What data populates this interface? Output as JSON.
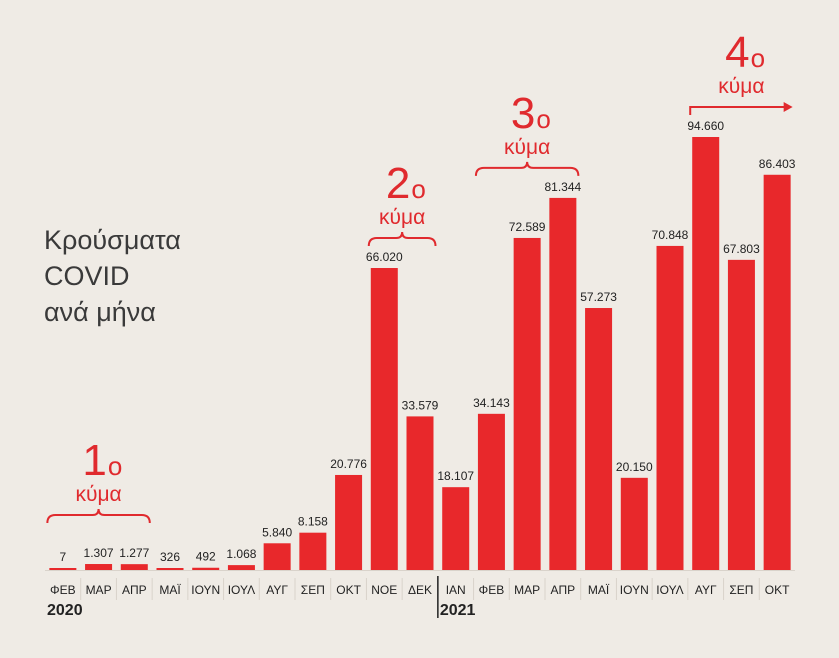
{
  "chart_data": {
    "type": "bar",
    "title_lines": [
      "Κρούσματα",
      "COVID",
      "ανά μήνα"
    ],
    "categories": [
      "ΦΕΒ",
      "ΜΑΡ",
      "ΑΠΡ",
      "ΜΑΪ",
      "ΙΟΥΝ",
      "ΙΟΥΛ",
      "ΑΥΓ",
      "ΣΕΠ",
      "ΟΚΤ",
      "ΝΟΕ",
      "ΔΕΚ",
      "ΙΑΝ",
      "ΦΕΒ",
      "ΜΑΡ",
      "ΑΠΡ",
      "ΜΑΪ",
      "ΙΟΥΝ",
      "ΙΟΥΛ",
      "ΑΥΓ",
      "ΣΕΠ",
      "ΟΚΤ"
    ],
    "values": [
      7,
      1307,
      1277,
      326,
      492,
      1068,
      5840,
      8158,
      20776,
      66020,
      33579,
      18107,
      34143,
      72589,
      81344,
      57273,
      20150,
      70848,
      94660,
      67803,
      86403
    ],
    "value_labels": [
      "7",
      "1.307",
      "1.277",
      "326",
      "492",
      "1.068",
      "5.840",
      "8.158",
      "20.776",
      "66.020",
      "33.579",
      "18.107",
      "34.143",
      "72.589",
      "81.344",
      "57.273",
      "20.150",
      "70.848",
      "94.660",
      "67.803",
      "86.403"
    ],
    "years": [
      {
        "label": "2020",
        "start_index": 0
      },
      {
        "label": "2021",
        "start_index": 11
      }
    ],
    "waves": [
      {
        "number": "1",
        "suffix": "ο",
        "word": "κύμα",
        "from_index": 0,
        "to_index": 2,
        "arrow": false
      },
      {
        "number": "2",
        "suffix": "ο",
        "word": "κύμα",
        "from_index": 9,
        "to_index": 10,
        "arrow": false
      },
      {
        "number": "3",
        "suffix": "ο",
        "word": "κύμα",
        "from_index": 12,
        "to_index": 14,
        "arrow": false
      },
      {
        "number": "4",
        "suffix": "ο",
        "word": "κύμα",
        "from_index": 18,
        "to_index": 20,
        "arrow": true
      }
    ],
    "ylim": [
      0,
      94660
    ],
    "grid": false,
    "colors": {
      "bar": "#e8282b",
      "accent_text": "#e02a2e",
      "label_text": "#222222",
      "background": "#efebe5"
    }
  }
}
